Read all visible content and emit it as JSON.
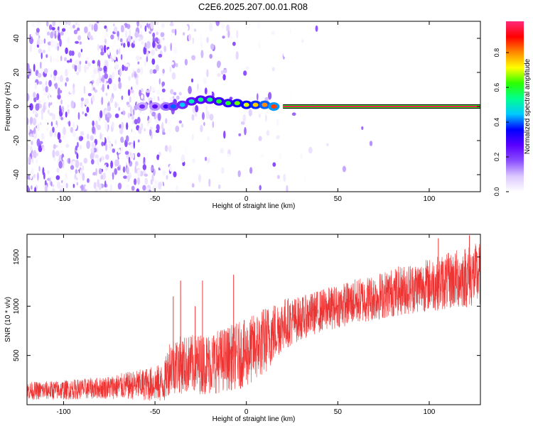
{
  "title": "C2E6.2025.207.00.01.R08",
  "chart_data": [
    {
      "type": "heatmap",
      "name": "spectrogram",
      "xlabel": "Height of straight line (km)",
      "ylabel": "Frequency (Hz)",
      "xlim": [
        -120,
        128
      ],
      "ylim": [
        -50,
        50
      ],
      "x_ticks": [
        -100,
        -50,
        0,
        50,
        100
      ],
      "y_ticks": [
        -40,
        -20,
        0,
        20,
        40
      ],
      "grid": false,
      "colorbar": {
        "label": "Normalized spectral amplitude",
        "range": [
          0,
          0.98
        ],
        "ticks": [
          "0.0",
          "0.2",
          "0.4",
          "0.6",
          "0.8"
        ],
        "colormap": [
          "#ffffff",
          "#dcc8ff",
          "#8a4dff",
          "#5a00ff",
          "#0000ff",
          "#00c8ff",
          "#00ff90",
          "#2aff00",
          "#ffff00",
          "#ff8800",
          "#ff0000",
          "#ff2a7a"
        ]
      },
      "carrier": {
        "frequency_hz": 0,
        "x_start_km": 20,
        "x_end_km": 128,
        "amplitude": 0.95
      },
      "energy_blobs": [
        {
          "x": -57,
          "f": 0,
          "amp": 0.22
        },
        {
          "x": -50,
          "f": 0,
          "amp": 0.25
        },
        {
          "x": -44,
          "f": 0,
          "amp": 0.3
        },
        {
          "x": -40,
          "f": 0,
          "amp": 0.4
        },
        {
          "x": -35,
          "f": 1,
          "amp": 0.45
        },
        {
          "x": -30,
          "f": 3,
          "amp": 0.5
        },
        {
          "x": -25,
          "f": 4,
          "amp": 0.55
        },
        {
          "x": -20,
          "f": 4,
          "amp": 0.55
        },
        {
          "x": -15,
          "f": 3,
          "amp": 0.6
        },
        {
          "x": -10,
          "f": 2,
          "amp": 0.6
        },
        {
          "x": -5,
          "f": 2,
          "amp": 0.65
        },
        {
          "x": 0,
          "f": 1,
          "amp": 0.7
        },
        {
          "x": 5,
          "f": 1,
          "amp": 0.75
        },
        {
          "x": 10,
          "f": 1,
          "amp": 0.8
        },
        {
          "x": 15,
          "f": 0,
          "amp": 0.85
        }
      ]
    },
    {
      "type": "line",
      "name": "snr",
      "xlabel": "Height of straight line (km)",
      "ylabel": "SNR (10 * v/v)",
      "xlim": [
        -120,
        128
      ],
      "ylim": [
        0,
        1730
      ],
      "x_ticks": [
        -100,
        -50,
        0,
        50,
        100
      ],
      "y_ticks": [
        500,
        1000,
        1500
      ],
      "grid": false,
      "color": "#ee3333",
      "envelope": {
        "x": [
          -120,
          -100,
          -80,
          -60,
          -45,
          -42,
          -30,
          -20,
          -10,
          0,
          10,
          20,
          30,
          40,
          50,
          60,
          70,
          80,
          90,
          100,
          110,
          120,
          128
        ],
        "mean": [
          140,
          150,
          170,
          200,
          220,
          400,
          410,
          420,
          470,
          520,
          650,
          820,
          880,
          950,
          1000,
          1050,
          1090,
          1140,
          1180,
          1220,
          1250,
          1300,
          1320
        ],
        "spread": [
          90,
          100,
          110,
          150,
          200,
          290,
          300,
          320,
          330,
          350,
          350,
          270,
          220,
          220,
          220,
          230,
          240,
          250,
          260,
          270,
          290,
          320,
          330
        ]
      },
      "spikes": [
        {
          "x": -40,
          "y": 1100
        },
        {
          "x": -36,
          "y": 1260
        },
        {
          "x": -28,
          "y": 1000
        },
        {
          "x": -24,
          "y": 1260
        },
        {
          "x": -7,
          "y": 1320
        },
        {
          "x": 105,
          "y": 1690
        },
        {
          "x": 122,
          "y": 1720
        },
        {
          "x": 128,
          "y": 1700
        }
      ]
    }
  ]
}
